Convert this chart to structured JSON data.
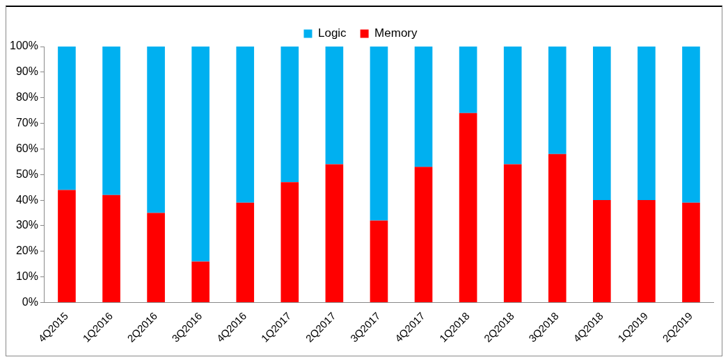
{
  "chart_data": {
    "type": "bar",
    "stacked": true,
    "categories": [
      "4Q2015",
      "1Q2016",
      "2Q2016",
      "3Q2016",
      "4Q2016",
      "1Q2017",
      "2Q2017",
      "3Q2017",
      "4Q2017",
      "1Q2018",
      "2Q2018",
      "3Q2018",
      "4Q2018",
      "1Q2019",
      "2Q2019"
    ],
    "series": [
      {
        "name": "Memory",
        "color": "#ff0000",
        "values": [
          44,
          42,
          35,
          16,
          39,
          47,
          54,
          32,
          53,
          74,
          54,
          58,
          40,
          40,
          39
        ]
      },
      {
        "name": "Logic",
        "color": "#00b0f0",
        "values": [
          56,
          58,
          65,
          84,
          61,
          53,
          46,
          68,
          47,
          26,
          46,
          42,
          60,
          60,
          61
        ]
      }
    ],
    "ylim": [
      0,
      100
    ],
    "yticks": [
      {
        "value": 0,
        "label": "0%"
      },
      {
        "value": 10,
        "label": "10%"
      },
      {
        "value": 20,
        "label": "20%"
      },
      {
        "value": 30,
        "label": "30%"
      },
      {
        "value": 40,
        "label": "40%"
      },
      {
        "value": 50,
        "label": "50%"
      },
      {
        "value": 60,
        "label": "60%"
      },
      {
        "value": 70,
        "label": "70%"
      },
      {
        "value": 80,
        "label": "80%"
      },
      {
        "value": 90,
        "label": "90%"
      },
      {
        "value": 100,
        "label": "100%"
      }
    ],
    "grid": false,
    "legend": "top"
  }
}
